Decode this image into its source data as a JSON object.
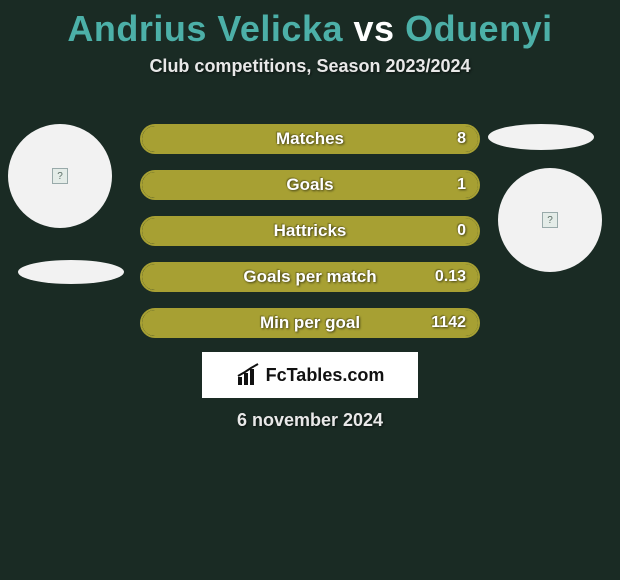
{
  "title": {
    "player1": "Andrius Velicka",
    "vs": "vs",
    "player2": "Oduenyi",
    "color_player": "#4cb0a8",
    "color_vs": "#ffffff",
    "fontsize": 36
  },
  "subtitle": "Club competitions, Season 2023/2024",
  "background_color": "#1a2b24",
  "players": {
    "left": {
      "circle_color": "#f2f2f2"
    },
    "right": {
      "circle_color": "#f2f2f2"
    }
  },
  "bars": {
    "border_color": "#a7a033",
    "fill_color": "#a7a033",
    "track_color": "transparent",
    "label_color": "#ffffff",
    "items": [
      {
        "label": "Matches",
        "value_right": "8",
        "fill_pct": 100
      },
      {
        "label": "Goals",
        "value_right": "1",
        "fill_pct": 100
      },
      {
        "label": "Hattricks",
        "value_right": "0",
        "fill_pct": 100
      },
      {
        "label": "Goals per match",
        "value_right": "0.13",
        "fill_pct": 100
      },
      {
        "label": "Min per goal",
        "value_right": "1142",
        "fill_pct": 100
      }
    ]
  },
  "branding": {
    "text": "FcTables.com",
    "background": "#ffffff",
    "text_color": "#111111"
  },
  "date": "6 november 2024"
}
